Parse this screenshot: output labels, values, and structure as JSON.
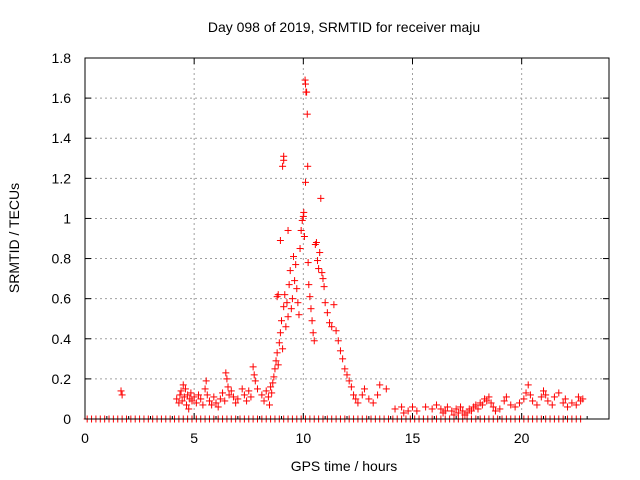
{
  "chart_data": {
    "type": "scatter",
    "title": "Day 098 of 2019, SRMTID for receiver maju",
    "xlabel": "GPS time / hours",
    "ylabel": "SRMTID / TECUs",
    "xlim": [
      0,
      24
    ],
    "ylim": [
      0,
      1.8
    ],
    "x_ticks": [
      0,
      5,
      10,
      15,
      20
    ],
    "x_tick_labels": [
      "0",
      "5",
      "10",
      "15",
      "20"
    ],
    "y_ticks": [
      0,
      0.2,
      0.4,
      0.6,
      0.8,
      1.0,
      1.2,
      1.4,
      1.6,
      1.8
    ],
    "y_tick_labels": [
      "0",
      "0.2",
      "0.4",
      "0.6",
      "0.8",
      "1",
      "1.2",
      "1.4",
      "1.6",
      "1.8"
    ],
    "grid": true,
    "marker": "+",
    "series": [
      {
        "name": "SRMTID",
        "color": "#ff0000",
        "points": [
          [
            0.1,
            0
          ],
          [
            0.3,
            0
          ],
          [
            0.5,
            0
          ],
          [
            0.7,
            0
          ],
          [
            0.9,
            0
          ],
          [
            1.1,
            0
          ],
          [
            1.3,
            0
          ],
          [
            1.5,
            0
          ],
          [
            1.7,
            0
          ],
          [
            1.9,
            0
          ],
          [
            2.1,
            0
          ],
          [
            2.3,
            0
          ],
          [
            2.5,
            0
          ],
          [
            2.7,
            0
          ],
          [
            2.9,
            0
          ],
          [
            3.1,
            0
          ],
          [
            3.3,
            0
          ],
          [
            3.5,
            0
          ],
          [
            3.7,
            0
          ],
          [
            3.9,
            0
          ],
          [
            4.1,
            0
          ],
          [
            4.3,
            0
          ],
          [
            4.5,
            0
          ],
          [
            4.7,
            0
          ],
          [
            4.9,
            0
          ],
          [
            5.1,
            0
          ],
          [
            5.3,
            0
          ],
          [
            5.5,
            0
          ],
          [
            5.7,
            0
          ],
          [
            5.9,
            0
          ],
          [
            6.1,
            0
          ],
          [
            6.3,
            0
          ],
          [
            6.5,
            0
          ],
          [
            6.7,
            0
          ],
          [
            6.9,
            0
          ],
          [
            7.1,
            0
          ],
          [
            7.3,
            0
          ],
          [
            7.5,
            0
          ],
          [
            7.7,
            0
          ],
          [
            7.9,
            0
          ],
          [
            8.1,
            0
          ],
          [
            8.3,
            0
          ],
          [
            8.5,
            0
          ],
          [
            8.7,
            0
          ],
          [
            8.9,
            0
          ],
          [
            9.1,
            0
          ],
          [
            9.3,
            0
          ],
          [
            9.5,
            0
          ],
          [
            9.7,
            0
          ],
          [
            9.9,
            0
          ],
          [
            10.1,
            0
          ],
          [
            10.3,
            0
          ],
          [
            10.5,
            0
          ],
          [
            10.7,
            0
          ],
          [
            10.9,
            0
          ],
          [
            11.1,
            0
          ],
          [
            11.3,
            0
          ],
          [
            11.5,
            0
          ],
          [
            11.7,
            0
          ],
          [
            11.9,
            0
          ],
          [
            12.1,
            0
          ],
          [
            12.3,
            0
          ],
          [
            12.5,
            0
          ],
          [
            12.7,
            0
          ],
          [
            12.9,
            0
          ],
          [
            13.1,
            0
          ],
          [
            13.3,
            0
          ],
          [
            13.5,
            0
          ],
          [
            13.7,
            0
          ],
          [
            13.9,
            0
          ],
          [
            14.1,
            0
          ],
          [
            14.3,
            0
          ],
          [
            14.5,
            0
          ],
          [
            14.7,
            0
          ],
          [
            14.9,
            0
          ],
          [
            15.1,
            0
          ],
          [
            15.3,
            0
          ],
          [
            15.5,
            0
          ],
          [
            15.7,
            0
          ],
          [
            15.9,
            0
          ],
          [
            16.1,
            0
          ],
          [
            16.3,
            0
          ],
          [
            16.5,
            0
          ],
          [
            16.7,
            0
          ],
          [
            16.9,
            0
          ],
          [
            17.1,
            0
          ],
          [
            17.3,
            0
          ],
          [
            17.5,
            0
          ],
          [
            17.7,
            0
          ],
          [
            17.9,
            0
          ],
          [
            18.1,
            0
          ],
          [
            18.3,
            0
          ],
          [
            18.5,
            0
          ],
          [
            18.7,
            0
          ],
          [
            18.9,
            0
          ],
          [
            19.1,
            0
          ],
          [
            19.3,
            0
          ],
          [
            19.5,
            0
          ],
          [
            19.7,
            0
          ],
          [
            19.9,
            0
          ],
          [
            20.1,
            0
          ],
          [
            20.3,
            0
          ],
          [
            20.5,
            0
          ],
          [
            20.7,
            0
          ],
          [
            20.9,
            0
          ],
          [
            21.1,
            0
          ],
          [
            21.3,
            0
          ],
          [
            21.5,
            0
          ],
          [
            21.7,
            0
          ],
          [
            21.9,
            0
          ],
          [
            22.1,
            0
          ],
          [
            22.3,
            0
          ],
          [
            22.5,
            0
          ],
          [
            22.7,
            0
          ],
          [
            1.65,
            0.14
          ],
          [
            1.7,
            0.12
          ],
          [
            4.2,
            0.1
          ],
          [
            4.3,
            0.08
          ],
          [
            4.35,
            0.12
          ],
          [
            4.4,
            0.14
          ],
          [
            4.45,
            0.09
          ],
          [
            4.5,
            0.17
          ],
          [
            4.55,
            0.11
          ],
          [
            4.6,
            0.15
          ],
          [
            4.65,
            0.07
          ],
          [
            4.7,
            0.12
          ],
          [
            4.75,
            0.05
          ],
          [
            4.8,
            0.1
          ],
          [
            4.85,
            0.13
          ],
          [
            4.9,
            0.09
          ],
          [
            5.0,
            0.11
          ],
          [
            5.1,
            0.08
          ],
          [
            5.2,
            0.12
          ],
          [
            5.3,
            0.1
          ],
          [
            5.4,
            0.07
          ],
          [
            5.5,
            0.15
          ],
          [
            5.55,
            0.19
          ],
          [
            5.6,
            0.12
          ],
          [
            5.7,
            0.09
          ],
          [
            5.8,
            0.07
          ],
          [
            5.9,
            0.11
          ],
          [
            6.0,
            0.08
          ],
          [
            6.1,
            0.06
          ],
          [
            6.2,
            0.1
          ],
          [
            6.3,
            0.13
          ],
          [
            6.4,
            0.09
          ],
          [
            6.45,
            0.23
          ],
          [
            6.5,
            0.2
          ],
          [
            6.55,
            0.16
          ],
          [
            6.6,
            0.12
          ],
          [
            6.7,
            0.14
          ],
          [
            6.8,
            0.11
          ],
          [
            6.9,
            0.08
          ],
          [
            7.0,
            0.1
          ],
          [
            7.2,
            0.15
          ],
          [
            7.3,
            0.12
          ],
          [
            7.4,
            0.09
          ],
          [
            7.5,
            0.14
          ],
          [
            7.6,
            0.11
          ],
          [
            7.7,
            0.26
          ],
          [
            7.75,
            0.22
          ],
          [
            7.8,
            0.19
          ],
          [
            7.9,
            0.15
          ],
          [
            8.1,
            0.12
          ],
          [
            8.2,
            0.09
          ],
          [
            8.3,
            0.14
          ],
          [
            8.4,
            0.11
          ],
          [
            8.45,
            0.07
          ],
          [
            8.5,
            0.16
          ],
          [
            8.55,
            0.13
          ],
          [
            8.6,
            0.18
          ],
          [
            8.65,
            0.21
          ],
          [
            8.7,
            0.25
          ],
          [
            8.75,
            0.29
          ],
          [
            8.8,
            0.33
          ],
          [
            8.85,
            0.27
          ],
          [
            8.9,
            0.38
          ],
          [
            8.95,
            0.43
          ],
          [
            9.0,
            0.49
          ],
          [
            9.05,
            0.35
          ],
          [
            9.1,
            0.56
          ],
          [
            9.15,
            0.62
          ],
          [
            9.2,
            0.46
          ],
          [
            9.25,
            0.58
          ],
          [
            9.3,
            0.51
          ],
          [
            9.35,
            0.67
          ],
          [
            9.4,
            0.74
          ],
          [
            9.45,
            0.55
          ],
          [
            9.5,
            0.6
          ],
          [
            9.55,
            0.81
          ],
          [
            9.6,
            0.69
          ],
          [
            8.8,
            0.61
          ],
          [
            8.85,
            0.62
          ],
          [
            8.95,
            0.89
          ],
          [
            9.05,
            1.26
          ],
          [
            9.1,
            1.29
          ],
          [
            9.1,
            1.31
          ],
          [
            9.3,
            0.94
          ],
          [
            9.65,
            0.77
          ],
          [
            9.7,
            0.65
          ],
          [
            9.75,
            0.58
          ],
          [
            9.8,
            0.52
          ],
          [
            9.85,
            0.85
          ],
          [
            9.9,
            0.94
          ],
          [
            9.95,
            0.99
          ],
          [
            10.0,
            1.01
          ],
          [
            10.02,
            1.03
          ],
          [
            10.05,
            0.91
          ],
          [
            10.08,
            1.69
          ],
          [
            10.1,
            1.67
          ],
          [
            10.12,
            1.63
          ],
          [
            10.15,
            1.63
          ],
          [
            10.18,
            1.52
          ],
          [
            10.2,
            1.26
          ],
          [
            10.1,
            1.18
          ],
          [
            10.22,
            0.78
          ],
          [
            10.25,
            0.67
          ],
          [
            10.3,
            0.61
          ],
          [
            10.35,
            0.55
          ],
          [
            10.4,
            0.49
          ],
          [
            10.45,
            0.43
          ],
          [
            10.5,
            0.39
          ],
          [
            10.55,
            0.87
          ],
          [
            10.6,
            0.88
          ],
          [
            10.65,
            0.79
          ],
          [
            10.7,
            0.75
          ],
          [
            10.75,
            0.83
          ],
          [
            10.8,
            1.1
          ],
          [
            10.85,
            0.73
          ],
          [
            10.9,
            0.7
          ],
          [
            10.95,
            0.66
          ],
          [
            11.0,
            0.58
          ],
          [
            11.1,
            0.53
          ],
          [
            11.2,
            0.48
          ],
          [
            11.3,
            0.46
          ],
          [
            11.4,
            0.57
          ],
          [
            11.5,
            0.44
          ],
          [
            11.6,
            0.39
          ],
          [
            11.7,
            0.34
          ],
          [
            11.8,
            0.3
          ],
          [
            11.9,
            0.25
          ],
          [
            12.0,
            0.22
          ],
          [
            12.1,
            0.19
          ],
          [
            12.2,
            0.16
          ],
          [
            12.3,
            0.12
          ],
          [
            12.4,
            0.1
          ],
          [
            12.5,
            0.08
          ],
          [
            12.7,
            0.12
          ],
          [
            12.8,
            0.15
          ],
          [
            13.0,
            0.1
          ],
          [
            13.2,
            0.08
          ],
          [
            13.4,
            0.12
          ],
          [
            13.5,
            0.17
          ],
          [
            13.8,
            0.15
          ],
          [
            14.2,
            0.05
          ],
          [
            14.5,
            0.06
          ],
          [
            14.6,
            0.03
          ],
          [
            14.8,
            0.04
          ],
          [
            15.0,
            0.06
          ],
          [
            15.2,
            0.04
          ],
          [
            15.6,
            0.06
          ],
          [
            15.9,
            0.05
          ],
          [
            16.1,
            0.07
          ],
          [
            16.3,
            0.05
          ],
          [
            16.4,
            0.03
          ],
          [
            16.5,
            0.04
          ],
          [
            16.6,
            0.06
          ],
          [
            16.8,
            0.04
          ],
          [
            16.9,
            0.02
          ],
          [
            17.0,
            0.05
          ],
          [
            17.1,
            0.03
          ],
          [
            17.2,
            0.06
          ],
          [
            17.3,
            0.04
          ],
          [
            17.4,
            0.02
          ],
          [
            17.5,
            0.03
          ],
          [
            17.6,
            0.05
          ],
          [
            17.7,
            0.04
          ],
          [
            17.8,
            0.06
          ],
          [
            17.9,
            0.07
          ],
          [
            18.0,
            0.05
          ],
          [
            18.1,
            0.08
          ],
          [
            18.2,
            0.07
          ],
          [
            18.3,
            0.1
          ],
          [
            18.4,
            0.09
          ],
          [
            18.5,
            0.11
          ],
          [
            18.6,
            0.08
          ],
          [
            18.7,
            0.06
          ],
          [
            18.8,
            0.04
          ],
          [
            19.0,
            0.05
          ],
          [
            19.2,
            0.09
          ],
          [
            19.3,
            0.11
          ],
          [
            19.5,
            0.07
          ],
          [
            19.7,
            0.06
          ],
          [
            19.9,
            0.08
          ],
          [
            20.1,
            0.1
          ],
          [
            20.2,
            0.13
          ],
          [
            20.3,
            0.17
          ],
          [
            20.4,
            0.12
          ],
          [
            20.5,
            0.09
          ],
          [
            20.7,
            0.07
          ],
          [
            20.9,
            0.11
          ],
          [
            21.0,
            0.14
          ],
          [
            21.1,
            0.12
          ],
          [
            21.2,
            0.09
          ],
          [
            21.4,
            0.07
          ],
          [
            21.5,
            0.11
          ],
          [
            21.7,
            0.13
          ],
          [
            21.9,
            0.08
          ],
          [
            22.0,
            0.1
          ],
          [
            22.1,
            0.06
          ],
          [
            22.3,
            0.08
          ],
          [
            22.5,
            0.07
          ],
          [
            22.6,
            0.11
          ],
          [
            22.7,
            0.09
          ],
          [
            22.8,
            0.1
          ]
        ]
      }
    ]
  }
}
